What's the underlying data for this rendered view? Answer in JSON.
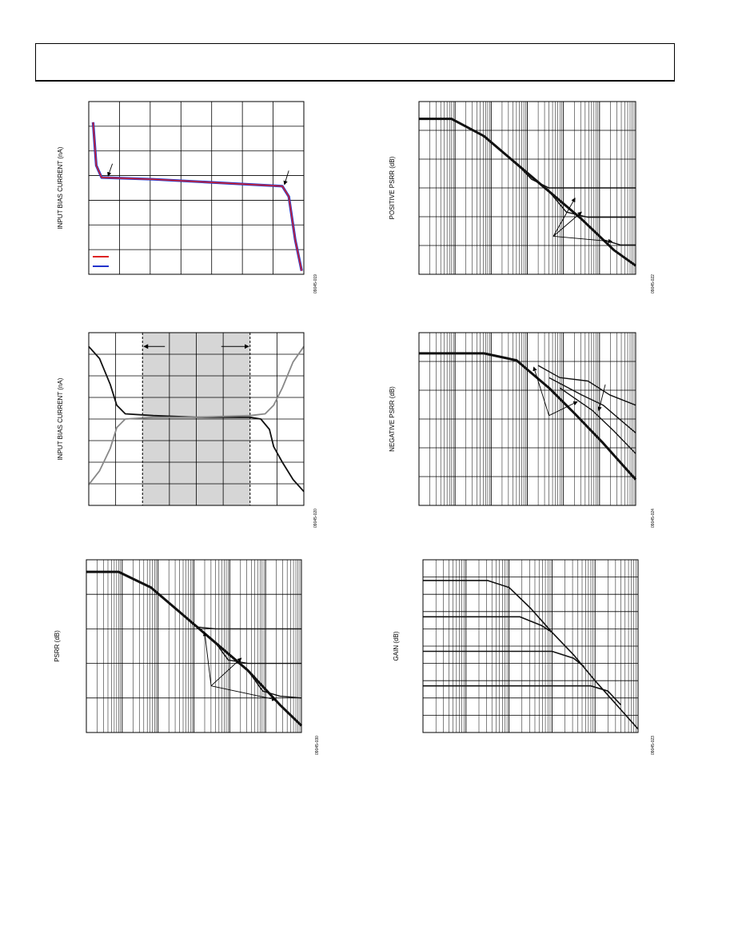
{
  "page": {
    "header_text": ""
  },
  "chart_data": [
    {
      "id": "bias-vs-vcm",
      "type": "line",
      "ylabel": "INPUT BIAS CURRENT (nA)",
      "fig_id": "09045-019",
      "x_range": [
        0,
        1
      ],
      "y_range": [
        0,
        1
      ],
      "grid": {
        "x": 7,
        "y": 7
      },
      "log_x": false,
      "series": [
        {
          "color": "#2233cc",
          "width": 3.2,
          "points": [
            [
              0.02,
              0.88
            ],
            [
              0.035,
              0.63
            ],
            [
              0.06,
              0.56
            ],
            [
              0.3,
              0.55
            ],
            [
              0.6,
              0.53
            ],
            [
              0.9,
              0.51
            ],
            [
              0.93,
              0.45
            ],
            [
              0.96,
              0.2
            ],
            [
              0.99,
              0.02
            ]
          ]
        },
        {
          "color": "#dd2222",
          "width": 1.4,
          "points": [
            [
              0.02,
              0.88
            ],
            [
              0.035,
              0.63
            ],
            [
              0.06,
              0.56
            ],
            [
              0.3,
              0.55
            ],
            [
              0.6,
              0.53
            ],
            [
              0.9,
              0.51
            ],
            [
              0.93,
              0.45
            ],
            [
              0.96,
              0.2
            ],
            [
              0.99,
              0.02
            ]
          ]
        }
      ],
      "legend_swatches": [
        "#dd2222",
        "#2233cc"
      ],
      "arrows": [
        [
          0.11,
          0.64,
          0.09,
          0.57
        ],
        [
          0.93,
          0.6,
          0.91,
          0.52
        ]
      ],
      "shade": null
    },
    {
      "id": "bias-vs-vcm-2",
      "type": "line",
      "ylabel": "INPUT BIAS CURRENT (nA)",
      "fig_id": "09045-020",
      "x_range": [
        0,
        1
      ],
      "y_range": [
        0,
        1
      ],
      "grid": {
        "x": 8,
        "y": 8
      },
      "log_x": false,
      "series": [
        {
          "color": "#111111",
          "width": 1.8,
          "points": [
            [
              0,
              0.92
            ],
            [
              0.05,
              0.85
            ],
            [
              0.1,
              0.7
            ],
            [
              0.13,
              0.58
            ],
            [
              0.17,
              0.53
            ],
            [
              0.3,
              0.52
            ],
            [
              0.5,
              0.51
            ],
            [
              0.75,
              0.51
            ],
            [
              0.8,
              0.5
            ],
            [
              0.84,
              0.44
            ],
            [
              0.86,
              0.34
            ],
            [
              0.9,
              0.25
            ],
            [
              0.95,
              0.15
            ],
            [
              1,
              0.08
            ]
          ]
        },
        {
          "color": "#888888",
          "width": 1.8,
          "points": [
            [
              0,
              0.12
            ],
            [
              0.05,
              0.2
            ],
            [
              0.1,
              0.33
            ],
            [
              0.13,
              0.45
            ],
            [
              0.17,
              0.5
            ],
            [
              0.3,
              0.51
            ],
            [
              0.5,
              0.51
            ],
            [
              0.75,
              0.52
            ],
            [
              0.82,
              0.53
            ],
            [
              0.86,
              0.58
            ],
            [
              0.9,
              0.68
            ],
            [
              0.95,
              0.83
            ],
            [
              1,
              0.92
            ]
          ]
        }
      ],
      "legend_swatches": [],
      "arrows": [],
      "shade": {
        "x0": 0.25,
        "x1": 0.75,
        "arrow_y": 0.92
      }
    },
    {
      "id": "psrr",
      "type": "line",
      "ylabel": "PSRR (dB)",
      "fig_id": "09045-030",
      "x_range": [
        0,
        1
      ],
      "y_range": [
        0,
        1
      ],
      "grid": {
        "x": 0,
        "y": 5
      },
      "log_x": true,
      "log_decades": 6,
      "series": [
        {
          "color": "#111111",
          "width": 3,
          "points": [
            [
              0,
              0.93
            ],
            [
              0.15,
              0.93
            ],
            [
              0.3,
              0.84
            ],
            [
              0.45,
              0.68
            ],
            [
              0.6,
              0.52
            ],
            [
              0.75,
              0.36
            ],
            [
              0.9,
              0.16
            ],
            [
              1,
              0.04
            ]
          ]
        },
        {
          "color": "#111111",
          "width": 1.4,
          "points": [
            [
              0.45,
              0.68
            ],
            [
              0.52,
              0.61
            ],
            [
              0.6,
              0.6
            ],
            [
              1,
              0.6
            ]
          ]
        },
        {
          "color": "#111111",
          "width": 1.4,
          "points": [
            [
              0.6,
              0.52
            ],
            [
              0.66,
              0.42
            ],
            [
              0.75,
              0.4
            ],
            [
              1,
              0.4
            ]
          ]
        },
        {
          "color": "#111111",
          "width": 1.4,
          "points": [
            [
              0.75,
              0.36
            ],
            [
              0.82,
              0.24
            ],
            [
              0.9,
              0.21
            ],
            [
              1,
              0.2
            ]
          ]
        }
      ],
      "legend_swatches": [],
      "arrows": [
        [
          0.58,
          0.27,
          0.55,
          0.58
        ],
        [
          0.58,
          0.27,
          0.72,
          0.43
        ],
        [
          0.58,
          0.27,
          0.88,
          0.19
        ]
      ],
      "shade": null
    },
    {
      "id": "positive-psrr",
      "type": "line",
      "ylabel": "POSITIVE PSRR (dB)",
      "fig_id": "09045-022",
      "x_range": [
        0,
        1
      ],
      "y_range": [
        0,
        1
      ],
      "grid": {
        "x": 0,
        "y": 6
      },
      "log_x": true,
      "log_decades": 6,
      "series": [
        {
          "color": "#111111",
          "width": 3,
          "points": [
            [
              0,
              0.9
            ],
            [
              0.15,
              0.9
            ],
            [
              0.3,
              0.8
            ],
            [
              0.45,
              0.64
            ],
            [
              0.6,
              0.48
            ],
            [
              0.75,
              0.32
            ],
            [
              0.9,
              0.14
            ],
            [
              1,
              0.05
            ]
          ]
        },
        {
          "color": "#111111",
          "width": 1.4,
          "points": [
            [
              0.45,
              0.64
            ],
            [
              0.52,
              0.55
            ],
            [
              0.6,
              0.5
            ],
            [
              0.7,
              0.5
            ],
            [
              1,
              0.5
            ]
          ]
        },
        {
          "color": "#111111",
          "width": 1.4,
          "points": [
            [
              0.6,
              0.48
            ],
            [
              0.68,
              0.36
            ],
            [
              0.78,
              0.33
            ],
            [
              1,
              0.33
            ]
          ]
        },
        {
          "color": "#111111",
          "width": 1.4,
          "points": [
            [
              0.75,
              0.32
            ],
            [
              0.85,
              0.2
            ],
            [
              0.93,
              0.17
            ],
            [
              1,
              0.17
            ]
          ]
        }
      ],
      "legend_swatches": [],
      "arrows": [
        [
          0.62,
          0.22,
          0.72,
          0.44
        ],
        [
          0.62,
          0.22,
          0.75,
          0.36
        ],
        [
          0.62,
          0.22,
          0.89,
          0.19
        ]
      ],
      "shade": null
    },
    {
      "id": "negative-psrr",
      "type": "line",
      "ylabel": "NEGATIVE PSRR (dB)",
      "fig_id": "09045-024",
      "x_range": [
        0,
        1
      ],
      "y_range": [
        0,
        1
      ],
      "grid": {
        "x": 0,
        "y": 6
      },
      "log_x": true,
      "log_decades": 6,
      "series": [
        {
          "color": "#111111",
          "width": 3,
          "points": [
            [
              0,
              0.88
            ],
            [
              0.3,
              0.88
            ],
            [
              0.45,
              0.84
            ],
            [
              0.6,
              0.68
            ],
            [
              0.72,
              0.53
            ],
            [
              0.85,
              0.36
            ],
            [
              1,
              0.15
            ]
          ]
        },
        {
          "color": "#111111",
          "width": 1.4,
          "points": [
            [
              0.55,
              0.81
            ],
            [
              0.65,
              0.74
            ],
            [
              0.78,
              0.72
            ],
            [
              0.88,
              0.64
            ],
            [
              1,
              0.58
            ]
          ]
        },
        {
          "color": "#111111",
          "width": 1.4,
          "points": [
            [
              0.6,
              0.74
            ],
            [
              0.75,
              0.64
            ],
            [
              0.85,
              0.58
            ],
            [
              1,
              0.42
            ]
          ]
        },
        {
          "color": "#111111",
          "width": 1.4,
          "points": [
            [
              0.65,
              0.68
            ],
            [
              0.8,
              0.55
            ],
            [
              0.9,
              0.43
            ],
            [
              1,
              0.3
            ]
          ]
        }
      ],
      "legend_swatches": [],
      "arrows": [
        [
          0.6,
          0.52,
          0.53,
          0.8
        ],
        [
          0.6,
          0.52,
          0.73,
          0.6
        ],
        [
          0.86,
          0.7,
          0.83,
          0.55
        ]
      ],
      "shade": null
    },
    {
      "id": "gain",
      "type": "line",
      "ylabel": "GAIN (dB)",
      "fig_id": "09045-023",
      "x_range": [
        0,
        1
      ],
      "y_range": [
        0,
        1
      ],
      "grid": {
        "x": 0,
        "y": 10
      },
      "log_x": true,
      "log_decades": 5,
      "series": [
        {
          "color": "#111111",
          "width": 1.6,
          "points": [
            [
              0,
              0.88
            ],
            [
              0.3,
              0.88
            ],
            [
              0.4,
              0.84
            ],
            [
              0.5,
              0.72
            ],
            [
              0.6,
              0.58
            ],
            [
              0.7,
              0.45
            ],
            [
              0.8,
              0.3
            ],
            [
              0.9,
              0.16
            ],
            [
              1,
              0.02
            ]
          ]
        },
        {
          "color": "#111111",
          "width": 1.6,
          "points": [
            [
              0,
              0.67
            ],
            [
              0.45,
              0.67
            ],
            [
              0.55,
              0.62
            ],
            [
              0.6,
              0.58
            ]
          ]
        },
        {
          "color": "#111111",
          "width": 1.6,
          "points": [
            [
              0,
              0.47
            ],
            [
              0.6,
              0.47
            ],
            [
              0.7,
              0.43
            ],
            [
              0.75,
              0.38
            ]
          ]
        },
        {
          "color": "#111111",
          "width": 1.6,
          "points": [
            [
              0,
              0.27
            ],
            [
              0.78,
              0.27
            ],
            [
              0.86,
              0.24
            ],
            [
              0.92,
              0.16
            ]
          ]
        }
      ],
      "legend_swatches": [],
      "arrows": [],
      "shade": null
    }
  ]
}
